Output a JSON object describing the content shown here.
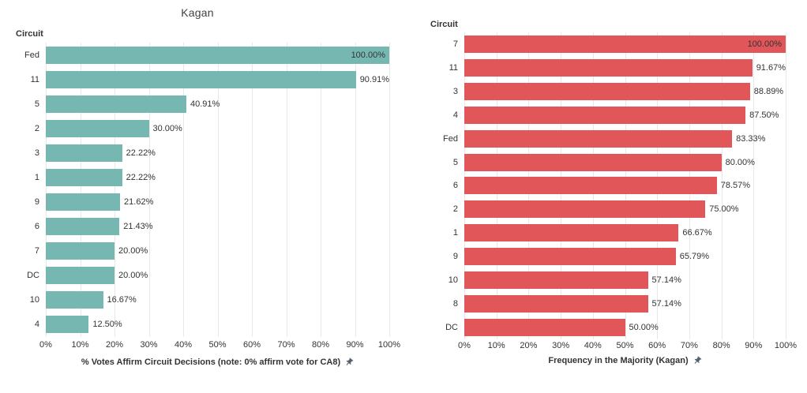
{
  "page": {
    "background": "#ffffff"
  },
  "chart_data": [
    {
      "type": "bar",
      "orientation": "horizontal",
      "title": "Kagan",
      "field_label": "Circuit",
      "xlabel": "% Votes Affirm Circuit Decisions (note: 0% affirm vote for CA8)",
      "xlabel_icon": "pushpin-icon",
      "bar_color": "#76B7B2",
      "categories": [
        "Fed",
        "11",
        "5",
        "2",
        "3",
        "1",
        "9",
        "6",
        "7",
        "DC",
        "10",
        "4"
      ],
      "values": [
        100.0,
        90.91,
        40.91,
        30.0,
        22.22,
        22.22,
        21.62,
        21.43,
        20.0,
        20.0,
        16.67,
        12.5
      ],
      "labels": [
        "100.00%",
        "90.91%",
        "40.91%",
        "30.00%",
        "22.22%",
        "22.22%",
        "21.62%",
        "21.43%",
        "20.00%",
        "20.00%",
        "16.67%",
        "12.50%"
      ],
      "xlim": [
        0,
        100
      ],
      "tick_labels": [
        "0%",
        "10%",
        "20%",
        "30%",
        "40%",
        "50%",
        "60%",
        "70%",
        "80%",
        "90%",
        "100%"
      ],
      "grid": true,
      "legend": "none"
    },
    {
      "type": "bar",
      "orientation": "horizontal",
      "title": "",
      "field_label": "Circuit",
      "xlabel": "Frequency in the Majority (Kagan)",
      "xlabel_icon": "pushpin-icon",
      "bar_color": "#E15759",
      "categories": [
        "7",
        "11",
        "3",
        "4",
        "Fed",
        "5",
        "6",
        "2",
        "1",
        "9",
        "10",
        "8",
        "DC"
      ],
      "values": [
        100.0,
        91.67,
        88.89,
        87.5,
        83.33,
        80.0,
        78.57,
        75.0,
        66.67,
        65.79,
        57.14,
        57.14,
        50.0
      ],
      "labels": [
        "100.00%",
        "91.67%",
        "88.89%",
        "87.50%",
        "83.33%",
        "80.00%",
        "78.57%",
        "75.00%",
        "66.67%",
        "65.79%",
        "57.14%",
        "57.14%",
        "50.00%"
      ],
      "xlim": [
        0,
        100
      ],
      "tick_labels": [
        "0%",
        "10%",
        "20%",
        "30%",
        "40%",
        "50%",
        "60%",
        "70%",
        "80%",
        "90%",
        "100%"
      ],
      "grid": true,
      "legend": "none"
    }
  ]
}
